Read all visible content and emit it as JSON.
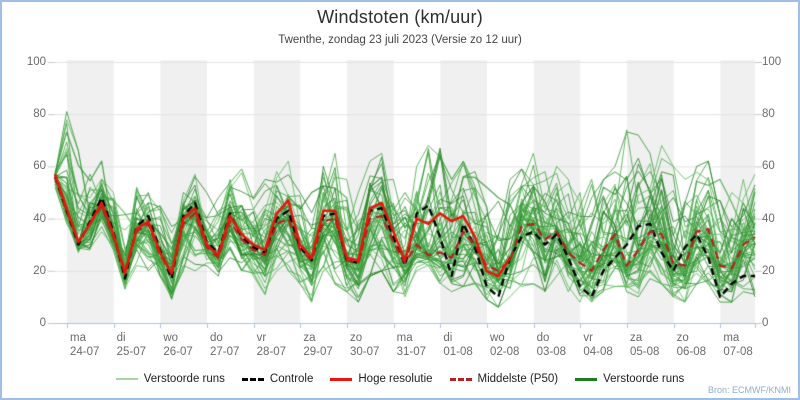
{
  "header": {
    "title": "Windstoten (km/uur)",
    "subtitle": "Twenthe, zondag 23 juli 2023 (Versie zo 12 uur)"
  },
  "source": "Bron: ECMWF/KNMI",
  "colors": {
    "frame_border": "#9fbfe5",
    "day_band": "#f0f0f0",
    "gridline": "#e3e3e3",
    "axis": "#a9c6e4",
    "ensemble_green": "#3aa03a",
    "control_black": "#000000",
    "hires_red": "#e8160c",
    "p50_darkred": "#b22222"
  },
  "chart_data": {
    "type": "line",
    "title": "Windstoten (km/uur)",
    "subtitle": "Twenthe, zondag 23 juli 2023 (Versie zo 12 uur)",
    "ylabel": "km/uur",
    "ylim": [
      0,
      100
    ],
    "yticks": [
      0,
      20,
      40,
      60,
      80,
      100
    ],
    "grid": true,
    "legend_position": "bottom",
    "time_step_hours": 6,
    "x_day_labels": [
      {
        "dow": "ma",
        "date": "24-07"
      },
      {
        "dow": "di",
        "date": "25-07"
      },
      {
        "dow": "wo",
        "date": "26-07"
      },
      {
        "dow": "do",
        "date": "27-07"
      },
      {
        "dow": "vr",
        "date": "28-07"
      },
      {
        "dow": "za",
        "date": "29-07"
      },
      {
        "dow": "zo",
        "date": "30-07"
      },
      {
        "dow": "ma",
        "date": "31-07"
      },
      {
        "dow": "di",
        "date": "01-08"
      },
      {
        "dow": "wo",
        "date": "02-08"
      },
      {
        "dow": "do",
        "date": "03-08"
      },
      {
        "dow": "vr",
        "date": "04-08"
      },
      {
        "dow": "za",
        "date": "05-08"
      },
      {
        "dow": "zo",
        "date": "06-08"
      },
      {
        "dow": "ma",
        "date": "07-08"
      }
    ],
    "series": [
      {
        "name": "Controle",
        "style": "dashed",
        "color": "#000000",
        "values": [
          56,
          43,
          30,
          39,
          48,
          35,
          17,
          37,
          41,
          28,
          17,
          41,
          46,
          31,
          27,
          42,
          33,
          29,
          27,
          40,
          43,
          29,
          24,
          41,
          42,
          24,
          23,
          43,
          44,
          33,
          22,
          42,
          45,
          33,
          18,
          38,
          29,
          14,
          10,
          25,
          33,
          35,
          30,
          34,
          25,
          14,
          10,
          20,
          25,
          30,
          37,
          38,
          27,
          20,
          29,
          34,
          25,
          10,
          15,
          18,
          18
        ]
      },
      {
        "name": "Hoge resolutie",
        "style": "solid",
        "color": "#e8160c",
        "values": [
          57,
          44,
          31,
          38,
          46,
          34,
          19,
          36,
          39,
          27,
          19,
          40,
          44,
          30,
          26,
          41,
          34,
          30,
          28,
          42,
          47,
          30,
          25,
          43,
          43,
          25,
          24,
          44,
          46,
          35,
          24,
          40,
          38,
          42,
          39,
          41,
          33,
          20,
          18,
          25
        ]
      },
      {
        "name": "Middelste (P50)",
        "style": "dashed",
        "color": "#b22222",
        "values": [
          56,
          43,
          31,
          38,
          45,
          33,
          20,
          35,
          38,
          26,
          19,
          38,
          42,
          29,
          25,
          39,
          32,
          28,
          26,
          38,
          40,
          28,
          24,
          39,
          40,
          24,
          23,
          40,
          41,
          31,
          23,
          30,
          26,
          27,
          25,
          35,
          30,
          22,
          20,
          24,
          37,
          38,
          32,
          35,
          27,
          23,
          20,
          28,
          34,
          22,
          28,
          35,
          34,
          23,
          22,
          35,
          36,
          22,
          21,
          30,
          33
        ]
      }
    ],
    "ensemble": {
      "name": "Verstoorde runs",
      "color": "#3aa03a",
      "count": 50,
      "envelope_min": [
        52,
        38,
        27,
        28,
        35,
        28,
        13,
        22,
        20,
        18,
        9,
        20,
        20,
        22,
        18,
        25,
        20,
        18,
        11,
        20,
        20,
        15,
        8,
        20,
        15,
        12,
        8,
        18,
        20,
        12,
        10,
        20,
        22,
        15,
        12,
        14,
        15,
        9,
        6,
        10,
        14,
        15,
        12,
        18,
        12,
        8,
        8,
        12,
        14,
        12,
        10,
        17,
        15,
        10,
        8,
        15,
        15,
        8,
        8,
        12,
        10
      ],
      "envelope_max": [
        58,
        81,
        66,
        57,
        62,
        50,
        42,
        52,
        50,
        45,
        37,
        50,
        57,
        50,
        48,
        55,
        59,
        48,
        55,
        58,
        62,
        50,
        50,
        60,
        65,
        55,
        50,
        62,
        65,
        55,
        50,
        60,
        68,
        67,
        55,
        62,
        58,
        52,
        48,
        55,
        59,
        65,
        58,
        60,
        55,
        50,
        55,
        55,
        60,
        74,
        72,
        65,
        68,
        60,
        55,
        60,
        62,
        55,
        50,
        55,
        57
      ]
    },
    "legend": [
      {
        "label": "Verstoorde runs",
        "swatch": "thin-green"
      },
      {
        "label": "Controle",
        "swatch": "black-dashed"
      },
      {
        "label": "Hoge resolutie",
        "swatch": "red-solid"
      },
      {
        "label": "Middelste (P50)",
        "swatch": "darkred-dashed"
      },
      {
        "label": "Verstoorde runs",
        "swatch": "green-solid"
      }
    ]
  }
}
